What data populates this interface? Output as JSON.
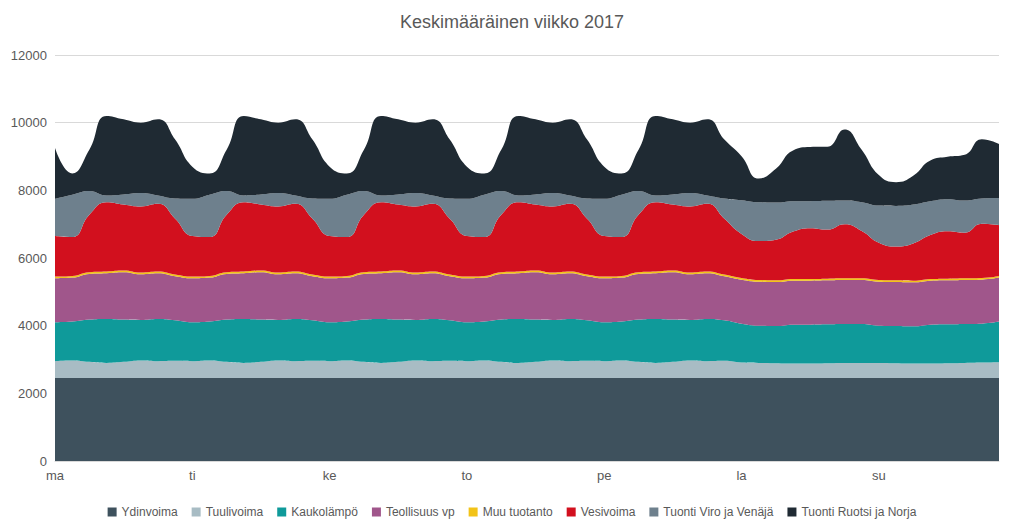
{
  "chart_data": {
    "type": "area",
    "title": "Keskimääräinen viikko 2017",
    "stacked": true,
    "grid": true,
    "legend": "bottom",
    "ylim": [
      0,
      12000
    ],
    "yticks": [
      0,
      2000,
      4000,
      6000,
      8000,
      10000,
      12000
    ],
    "categories": [
      "ma",
      null,
      null,
      null,
      null,
      null,
      null,
      null,
      "ti",
      null,
      null,
      null,
      null,
      null,
      null,
      null,
      "ke",
      null,
      null,
      null,
      null,
      null,
      null,
      null,
      "to",
      null,
      null,
      null,
      null,
      null,
      null,
      null,
      "pe",
      null,
      null,
      null,
      null,
      null,
      null,
      null,
      "la",
      null,
      null,
      null,
      null,
      null,
      null,
      null,
      "su",
      null,
      null,
      null,
      null,
      null,
      null,
      null
    ],
    "series": [
      {
        "name": "Ydinvoima",
        "color": "#3e515d",
        "values": [
          2450,
          2450,
          2450,
          2450,
          2450,
          2450,
          2450,
          2450,
          2450,
          2450,
          2450,
          2450,
          2450,
          2450,
          2450,
          2450,
          2450,
          2450,
          2450,
          2450,
          2450,
          2450,
          2450,
          2450,
          2450,
          2450,
          2450,
          2450,
          2450,
          2450,
          2450,
          2450,
          2450,
          2450,
          2450,
          2450,
          2450,
          2450,
          2450,
          2450,
          2450,
          2450,
          2450,
          2450,
          2450,
          2450,
          2450,
          2450,
          2450,
          2450,
          2450,
          2450,
          2450,
          2450,
          2450,
          2450
        ]
      },
      {
        "name": "Tuulivoima",
        "color": "#a8bcc4",
        "values": [
          500,
          520,
          480,
          450,
          480,
          520,
          500,
          510,
          500,
          520,
          480,
          450,
          480,
          520,
          500,
          510,
          500,
          520,
          480,
          450,
          480,
          520,
          500,
          510,
          500,
          520,
          480,
          450,
          480,
          520,
          500,
          510,
          500,
          520,
          480,
          450,
          480,
          520,
          500,
          510,
          460,
          450,
          440,
          430,
          430,
          440,
          450,
          450,
          450,
          440,
          430,
          430,
          440,
          450,
          460,
          470
        ]
      },
      {
        "name": "Kaukolämpö",
        "color": "#0f9a9a",
        "values": [
          1150,
          1150,
          1250,
          1300,
          1250,
          1200,
          1250,
          1200,
          1150,
          1150,
          1250,
          1300,
          1250,
          1200,
          1250,
          1200,
          1150,
          1150,
          1250,
          1300,
          1250,
          1200,
          1250,
          1200,
          1150,
          1150,
          1250,
          1300,
          1250,
          1200,
          1250,
          1200,
          1150,
          1150,
          1250,
          1300,
          1250,
          1200,
          1250,
          1200,
          1150,
          1100,
          1100,
          1150,
          1150,
          1150,
          1150,
          1150,
          1100,
          1100,
          1100,
          1150,
          1150,
          1150,
          1150,
          1200
        ]
      },
      {
        "name": "Teollisuus vp",
        "color": "#a0568b",
        "values": [
          1300,
          1300,
          1350,
          1350,
          1400,
          1350,
          1350,
          1300,
          1300,
          1300,
          1350,
          1350,
          1400,
          1350,
          1350,
          1300,
          1300,
          1300,
          1350,
          1350,
          1400,
          1350,
          1350,
          1300,
          1300,
          1300,
          1350,
          1350,
          1400,
          1350,
          1350,
          1300,
          1300,
          1300,
          1350,
          1350,
          1400,
          1350,
          1350,
          1300,
          1300,
          1300,
          1300,
          1300,
          1300,
          1300,
          1300,
          1300,
          1300,
          1300,
          1300,
          1300,
          1300,
          1300,
          1300,
          1300
        ]
      },
      {
        "name": "Muu tuotanto",
        "color": "#f2c318",
        "values": [
          50,
          50,
          50,
          50,
          50,
          50,
          50,
          50,
          50,
          50,
          50,
          50,
          50,
          50,
          50,
          50,
          50,
          50,
          50,
          50,
          50,
          50,
          50,
          50,
          50,
          50,
          50,
          50,
          50,
          50,
          50,
          50,
          50,
          50,
          50,
          50,
          50,
          50,
          50,
          50,
          50,
          50,
          50,
          50,
          50,
          50,
          50,
          50,
          50,
          50,
          50,
          50,
          50,
          50,
          50,
          50
        ]
      },
      {
        "name": "Vesivoima",
        "color": "#d2101e",
        "values": [
          1200,
          1150,
          1700,
          2050,
          1950,
          1950,
          2000,
          1650,
          1200,
          1150,
          1700,
          2050,
          1950,
          1950,
          2000,
          1650,
          1200,
          1150,
          1700,
          2050,
          1950,
          1950,
          2000,
          1650,
          1200,
          1150,
          1700,
          2050,
          1950,
          1950,
          2000,
          1650,
          1200,
          1150,
          1700,
          2050,
          1950,
          1950,
          2000,
          1650,
          1300,
          1150,
          1200,
          1400,
          1500,
          1450,
          1600,
          1400,
          1100,
          1000,
          1100,
          1300,
          1400,
          1350,
          1600,
          1500
        ]
      },
      {
        "name": "Tuonti Viro ja Venäjä",
        "color": "#6e808d",
        "values": [
          1100,
          1250,
          700,
          200,
          300,
          400,
          250,
          600,
          1100,
          1250,
          700,
          200,
          300,
          400,
          250,
          600,
          1100,
          1250,
          700,
          200,
          300,
          400,
          250,
          600,
          1100,
          1250,
          700,
          200,
          300,
          400,
          250,
          600,
          1100,
          1250,
          700,
          200,
          300,
          400,
          250,
          600,
          1000,
          1150,
          1100,
          900,
          800,
          850,
          700,
          850,
          1100,
          1200,
          1150,
          1000,
          950,
          950,
          750,
          800
        ]
      },
      {
        "name": "Tuonti Ruotsi ja Norja",
        "color": "#1f2a33",
        "values": [
          1500,
          630,
          1220,
          2350,
          2220,
          2080,
          2250,
          1740,
          950,
          630,
          1220,
          2350,
          2220,
          2080,
          2250,
          1740,
          950,
          630,
          1220,
          2350,
          2220,
          2080,
          2250,
          1740,
          950,
          630,
          1220,
          2350,
          2220,
          2080,
          2250,
          1740,
          950,
          630,
          1220,
          2350,
          2220,
          2080,
          2250,
          1740,
          1300,
          700,
          1000,
          1500,
          1600,
          1600,
          2100,
          1550,
          900,
          700,
          850,
          1200,
          1250,
          1350,
          1750,
          1600
        ]
      }
    ]
  }
}
